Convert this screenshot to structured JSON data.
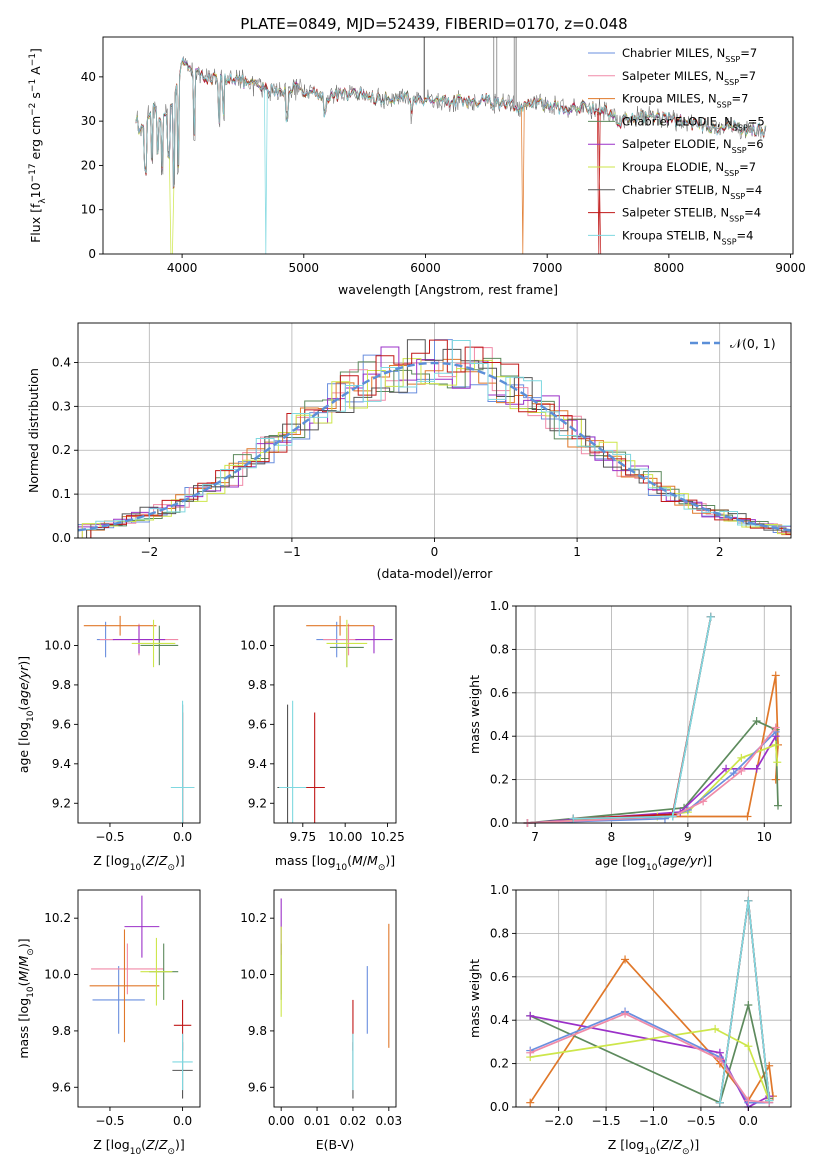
{
  "title": "PLATE=0849, MJD=52439, FIBERID=0170, z=0.048",
  "colors": {
    "Chabrier MILES": "#6a8fdf",
    "Salpeter MILES": "#f08aa8",
    "Kroupa MILES": "#e0782a",
    "Chabrier ELODIE": "#5d8a5d",
    "Salpeter ELODIE": "#9b30c8",
    "Kroupa ELODIE": "#cde64a",
    "Chabrier STELIB": "#555555",
    "Salpeter STELIB": "#c01818",
    "Kroupa STELIB": "#7fd8e0"
  },
  "chart_data": [
    {
      "type": "line",
      "id": "spectrum",
      "xlabel": "wavelength [Angstrom, rest frame]",
      "ylabel": "Flux [f$_\\lambda$10$^{-17}$ erg cm$^{-2}$ s$^{-1}$ A$^{-1}$]",
      "xlim": [
        3350,
        9020
      ],
      "ylim": [
        0,
        49
      ],
      "xticks": [
        4000,
        5000,
        6000,
        7000,
        8000,
        9000
      ],
      "yticks": [
        0,
        10,
        20,
        30,
        40
      ],
      "grid": false,
      "legend_position": "right",
      "legend": [
        {
          "name": "Chabrier MILES",
          "label": "Chabrier MILES, N",
          "sub": "SSP",
          "n": "=7"
        },
        {
          "name": "Salpeter MILES",
          "label": "Salpeter MILES, N",
          "sub": "SSP",
          "n": "=7"
        },
        {
          "name": "Kroupa MILES",
          "label": "Kroupa MILES, N",
          "sub": "SSP",
          "n": "=7"
        },
        {
          "name": "Chabrier ELODIE",
          "label": "Chabrier ELODIE, N",
          "sub": "SSP",
          "n": "=5"
        },
        {
          "name": "Salpeter ELODIE",
          "label": "Salpeter ELODIE, N",
          "sub": "SSP",
          "n": "=6"
        },
        {
          "name": "Kroupa ELODIE",
          "label": "Kroupa ELODIE, N",
          "sub": "SSP",
          "n": "=7"
        },
        {
          "name": "Chabrier STELIB",
          "label": "Chabrier STELIB, N",
          "sub": "SSP",
          "n": "=4"
        },
        {
          "name": "Salpeter STELIB",
          "label": "Salpeter STELIB, N",
          "sub": "SSP",
          "n": "=4"
        },
        {
          "name": "Kroupa STELIB",
          "label": "Kroupa STELIB, N",
          "sub": "SSP",
          "n": "=4"
        }
      ],
      "continuum": [
        [
          3620,
          31
        ],
        [
          3660,
          27
        ],
        [
          3700,
          31
        ],
        [
          3760,
          33
        ],
        [
          3800,
          30
        ],
        [
          3860,
          32
        ],
        [
          3900,
          33
        ],
        [
          3940,
          36
        ],
        [
          3980,
          40
        ],
        [
          4010,
          44
        ],
        [
          4060,
          42
        ],
        [
          4100,
          41
        ],
        [
          4200,
          40
        ],
        [
          4300,
          39
        ],
        [
          4400,
          40
        ],
        [
          4500,
          39
        ],
        [
          4600,
          38
        ],
        [
          4700,
          37
        ],
        [
          4800,
          37
        ],
        [
          4900,
          37.5
        ],
        [
          5000,
          37
        ],
        [
          5100,
          36.5
        ],
        [
          5200,
          35.5
        ],
        [
          5300,
          36
        ],
        [
          5400,
          36
        ],
        [
          5500,
          36
        ],
        [
          5600,
          35
        ],
        [
          5700,
          35
        ],
        [
          5800,
          36
        ],
        [
          5900,
          34.5
        ],
        [
          6000,
          35
        ],
        [
          6100,
          35
        ],
        [
          6200,
          34.5
        ],
        [
          6300,
          34.5
        ],
        [
          6400,
          34
        ],
        [
          6500,
          35
        ],
        [
          6600,
          34
        ],
        [
          6700,
          33.5
        ],
        [
          6800,
          33
        ],
        [
          6900,
          34
        ],
        [
          7000,
          33.5
        ],
        [
          7100,
          33
        ],
        [
          7200,
          32.5
        ],
        [
          7300,
          33.5
        ],
        [
          7400,
          33
        ],
        [
          7500,
          32
        ],
        [
          7600,
          30
        ],
        [
          7700,
          31
        ],
        [
          7800,
          31
        ],
        [
          7900,
          31
        ],
        [
          8000,
          30.5
        ],
        [
          8100,
          30
        ],
        [
          8200,
          29.5
        ],
        [
          8300,
          29
        ],
        [
          8400,
          28.5
        ],
        [
          8500,
          29
        ],
        [
          8600,
          28
        ],
        [
          8700,
          28
        ],
        [
          8800,
          28
        ]
      ],
      "absorption_lines": [
        [
          3700,
          18
        ],
        [
          3750,
          20
        ],
        [
          3798,
          22
        ],
        [
          3835,
          18
        ],
        [
          3890,
          21
        ],
        [
          3934,
          14
        ],
        [
          3969,
          18
        ],
        [
          4102,
          26
        ],
        [
          4305,
          28
        ],
        [
          4340,
          30
        ],
        [
          4861,
          30
        ],
        [
          5175,
          31
        ],
        [
          5890,
          30
        ],
        [
          6563,
          31
        ]
      ],
      "model_dropouts": [
        [
          3915,
          "Kroupa ELODIE"
        ],
        [
          4690,
          "Kroupa STELIB"
        ],
        [
          6800,
          "Kroupa MILES"
        ],
        [
          7420,
          "Salpeter STELIB"
        ]
      ]
    },
    {
      "type": "histogram",
      "id": "residuals",
      "xlabel": "(data-model)/error",
      "ylabel": "Normed distribution",
      "xlim": [
        -2.5,
        2.5
      ],
      "ylim": [
        0,
        0.49
      ],
      "xticks": [
        -2,
        -1,
        0,
        1,
        2
      ],
      "yticks": [
        0.0,
        0.1,
        0.2,
        0.3,
        0.4
      ],
      "grid": true,
      "legend_position": "top-right",
      "reference_label": "N(0,1)",
      "reference": "normal(0,1)",
      "bin_width": 0.125,
      "bins_from": -2.5
    },
    {
      "type": "scatter",
      "id": "age-vs-z",
      "xlabel": "Z [log10(Z/Zsun)]",
      "ylabel": "age [log10(age/yr)]",
      "xlim": [
        -0.72,
        0.12
      ],
      "ylim": [
        9.1,
        10.2
      ],
      "xticks": [
        -0.5,
        0.0
      ],
      "yticks": [
        9.2,
        9.4,
        9.6,
        9.8,
        10.0
      ],
      "grid": false,
      "points": [
        {
          "series": "Chabrier MILES",
          "x": -0.53,
          "y": 10.03,
          "xerr": 0.06,
          "yerr": 0.09
        },
        {
          "series": "Salpeter MILES",
          "x": -0.3,
          "y": 10.03,
          "xerr": 0.27,
          "yerr": 0.08
        },
        {
          "series": "Kroupa MILES",
          "x": -0.43,
          "y": 10.1,
          "xerr": 0.25,
          "yerr": 0.05
        },
        {
          "series": "Chabrier ELODIE",
          "x": -0.16,
          "y": 10.0,
          "xerr": 0.13,
          "yerr": 0.1
        },
        {
          "series": "Salpeter ELODIE",
          "x": -0.3,
          "y": 10.03,
          "xerr": 0.18,
          "yerr": 0.07
        },
        {
          "series": "Kroupa ELODIE",
          "x": -0.2,
          "y": 10.01,
          "xerr": 0.15,
          "yerr": 0.12
        },
        {
          "series": "Chabrier STELIB",
          "x": 0.0,
          "y": 9.28,
          "xerr": 0.08,
          "yerr": 0.42
        },
        {
          "series": "Salpeter STELIB",
          "x": 0.0,
          "y": 9.28,
          "xerr": 0.06,
          "yerr": 0.38
        },
        {
          "series": "Kroupa STELIB",
          "x": 0.0,
          "y": 9.28,
          "xerr": 0.08,
          "yerr": 0.44
        }
      ]
    },
    {
      "type": "scatter",
      "id": "age-vs-mass",
      "xlabel": "mass [log10(M/Msun)]",
      "ylabel": "",
      "xlim": [
        9.58,
        10.3
      ],
      "ylim": [
        9.1,
        10.2
      ],
      "xticks": [
        9.75,
        10.0,
        10.25
      ],
      "yticks": [
        9.2,
        9.4,
        9.6,
        9.8,
        10.0
      ],
      "xticklabels": [
        "9.75",
        "10.00",
        "10.25"
      ],
      "grid": false,
      "points": [
        {
          "series": "Chabrier MILES",
          "x": 9.95,
          "y": 10.03,
          "xerr": 0.12,
          "yerr": 0.09
        },
        {
          "series": "Salpeter MILES",
          "x": 10.02,
          "y": 10.03,
          "xerr": 0.15,
          "yerr": 0.08
        },
        {
          "series": "Kroupa MILES",
          "x": 9.97,
          "y": 10.1,
          "xerr": 0.2,
          "yerr": 0.05
        },
        {
          "series": "Chabrier ELODIE",
          "x": 10.01,
          "y": 9.99,
          "xerr": 0.1,
          "yerr": 0.1
        },
        {
          "series": "Salpeter ELODIE",
          "x": 10.17,
          "y": 10.03,
          "xerr": 0.11,
          "yerr": 0.07
        },
        {
          "series": "Kroupa ELODIE",
          "x": 10.01,
          "y": 10.01,
          "xerr": 0.12,
          "yerr": 0.12
        },
        {
          "series": "Chabrier STELIB",
          "x": 9.66,
          "y": 9.28,
          "xerr": 0.06,
          "yerr": 0.42
        },
        {
          "series": "Salpeter STELIB",
          "x": 9.82,
          "y": 9.28,
          "xerr": 0.06,
          "yerr": 0.38
        },
        {
          "series": "Kroupa STELIB",
          "x": 9.69,
          "y": 9.28,
          "xerr": 0.08,
          "yerr": 0.44
        }
      ]
    },
    {
      "type": "line",
      "id": "massweight-vs-age",
      "xlabel": "age [log10(age/yr)]",
      "ylabel": "mass weight",
      "xlim": [
        6.75,
        10.35
      ],
      "ylim": [
        0,
        1.0
      ],
      "xticks": [
        7,
        8,
        9,
        10
      ],
      "yticks": [
        0.0,
        0.2,
        0.4,
        0.6,
        0.8,
        1.0
      ],
      "grid": true,
      "series": [
        {
          "name": "Kroupa MILES",
          "x": [
            6.9,
            8.7,
            9.78,
            10.15,
            10.18,
            10.15
          ],
          "y": [
            0.0,
            0.03,
            0.03,
            0.68,
            0.36,
            0.2
          ]
        },
        {
          "name": "Chabrier ELODIE",
          "x": [
            6.9,
            8.95,
            9.9,
            10.15,
            10.18
          ],
          "y": [
            0.0,
            0.07,
            0.47,
            0.43,
            0.08
          ]
        },
        {
          "name": "Salpeter ELODIE",
          "x": [
            6.9,
            8.9,
            9.5,
            9.9,
            10.15
          ],
          "y": [
            0.0,
            0.05,
            0.25,
            0.25,
            0.4
          ]
        },
        {
          "name": "Kroupa ELODIE",
          "x": [
            6.9,
            8.6,
            9.0,
            9.7,
            10.15,
            10.17
          ],
          "y": [
            0.0,
            0.03,
            0.05,
            0.3,
            0.36,
            0.28
          ]
        },
        {
          "name": "Chabrier MILES",
          "x": [
            6.9,
            8.7,
            9.0,
            9.6,
            10.15
          ],
          "y": [
            0.0,
            0.02,
            0.06,
            0.23,
            0.42
          ]
        },
        {
          "name": "Salpeter MILES",
          "x": [
            6.9,
            8.8,
            9.2,
            9.7,
            10.15
          ],
          "y": [
            0.0,
            0.03,
            0.1,
            0.24,
            0.44
          ]
        },
        {
          "name": "Chabrier STELIB",
          "x": [
            7.5,
            8.8,
            9.3
          ],
          "y": [
            0.02,
            0.03,
            0.95
          ]
        },
        {
          "name": "Salpeter STELIB",
          "x": [
            7.5,
            8.8,
            9.3
          ],
          "y": [
            0.02,
            0.04,
            0.95
          ]
        },
        {
          "name": "Kroupa STELIB",
          "x": [
            7.5,
            8.8,
            9.3
          ],
          "y": [
            0.02,
            0.03,
            0.95
          ]
        }
      ]
    },
    {
      "type": "scatter",
      "id": "mass-vs-z",
      "xlabel": "Z [log10(Z/Zsun)]",
      "ylabel": "mass [log10(M/Msun)]",
      "xlim": [
        -0.72,
        0.12
      ],
      "ylim": [
        9.53,
        10.3
      ],
      "xticks": [
        -0.5,
        0.0
      ],
      "yticks": [
        9.6,
        9.8,
        10.0,
        10.2
      ],
      "grid": false,
      "points": [
        {
          "series": "Chabrier MILES",
          "x": -0.44,
          "y": 9.91,
          "xerr": 0.18,
          "yerr": 0.12
        },
        {
          "series": "Salpeter MILES",
          "x": -0.38,
          "y": 10.02,
          "xerr": 0.25,
          "yerr": 0.09
        },
        {
          "series": "Kroupa MILES",
          "x": -0.4,
          "y": 9.96,
          "xerr": 0.24,
          "yerr": 0.2
        },
        {
          "series": "Chabrier ELODIE",
          "x": -0.13,
          "y": 10.01,
          "xerr": 0.1,
          "yerr": 0.1
        },
        {
          "series": "Salpeter ELODIE",
          "x": -0.28,
          "y": 10.17,
          "xerr": 0.12,
          "yerr": 0.11
        },
        {
          "series": "Kroupa ELODIE",
          "x": -0.18,
          "y": 10.01,
          "xerr": 0.11,
          "yerr": 0.12
        },
        {
          "series": "Chabrier STELIB",
          "x": 0.0,
          "y": 9.66,
          "xerr": 0.07,
          "yerr": 0.1
        },
        {
          "series": "Salpeter STELIB",
          "x": 0.0,
          "y": 9.82,
          "xerr": 0.06,
          "yerr": 0.09
        },
        {
          "series": "Kroupa STELIB",
          "x": 0.0,
          "y": 9.69,
          "xerr": 0.07,
          "yerr": 0.1
        }
      ]
    },
    {
      "type": "scatter",
      "id": "mass-vs-ebv",
      "xlabel": "E(B-V)",
      "ylabel": "",
      "xlim": [
        -0.002,
        0.032
      ],
      "ylim": [
        9.53,
        10.3
      ],
      "xticks": [
        0.0,
        0.01,
        0.02,
        0.03
      ],
      "xticklabels": [
        "0.00",
        "0.01",
        "0.02",
        "0.03"
      ],
      "yticks": [
        9.6,
        9.8,
        10.0,
        10.2
      ],
      "grid": false,
      "points": [
        {
          "series": "Chabrier MILES",
          "x": 0.024,
          "y": 9.91,
          "xerr": 0.0,
          "yerr": 0.12
        },
        {
          "series": "Salpeter MILES",
          "x": 0.0,
          "y": 10.02,
          "xerr": 0.0,
          "yerr": 0.09
        },
        {
          "series": "Kroupa MILES",
          "x": 0.03,
          "y": 9.96,
          "xerr": 0.0,
          "yerr": 0.22
        },
        {
          "series": "Chabrier ELODIE",
          "x": 0.0,
          "y": 10.01,
          "xerr": 0.0,
          "yerr": 0.1
        },
        {
          "series": "Salpeter ELODIE",
          "x": 0.0,
          "y": 10.17,
          "xerr": 0.0,
          "yerr": 0.1
        },
        {
          "series": "Kroupa ELODIE",
          "x": 0.0,
          "y": 10.01,
          "xerr": 0.0,
          "yerr": 0.16
        },
        {
          "series": "Chabrier STELIB",
          "x": 0.02,
          "y": 9.66,
          "xerr": 0.0,
          "yerr": 0.1
        },
        {
          "series": "Salpeter STELIB",
          "x": 0.02,
          "y": 9.82,
          "xerr": 0.0,
          "yerr": 0.09
        },
        {
          "series": "Kroupa STELIB",
          "x": 0.02,
          "y": 9.69,
          "xerr": 0.0,
          "yerr": 0.1
        }
      ]
    },
    {
      "type": "line",
      "id": "massweight-vs-z",
      "xlabel": "Z [log10(Z/Zsun)]",
      "ylabel": "mass weight",
      "xlim": [
        -2.45,
        0.45
      ],
      "ylim": [
        0,
        1.0
      ],
      "xticks": [
        -2.0,
        -1.5,
        -1.0,
        -0.5,
        0.0
      ],
      "yticks": [
        0.0,
        0.2,
        0.4,
        0.6,
        0.8,
        1.0
      ],
      "grid": true,
      "series": [
        {
          "name": "Kroupa MILES",
          "x": [
            -2.3,
            -1.3,
            -0.3,
            0.0,
            0.22,
            0.26
          ],
          "y": [
            0.02,
            0.68,
            0.2,
            0.03,
            0.19,
            0.05
          ]
        },
        {
          "name": "Chabrier ELODIE",
          "x": [
            -2.3,
            -0.3,
            0.0,
            0.22
          ],
          "y": [
            0.42,
            0.02,
            0.47,
            0.04
          ]
        },
        {
          "name": "Salpeter ELODIE",
          "x": [
            -2.3,
            -0.3,
            0.0,
            0.22
          ],
          "y": [
            0.42,
            0.25,
            0.0,
            0.05
          ]
        },
        {
          "name": "Kroupa ELODIE",
          "x": [
            -2.3,
            -0.35,
            0.0,
            0.22
          ],
          "y": [
            0.23,
            0.36,
            0.28,
            0.03
          ]
        },
        {
          "name": "Chabrier MILES",
          "x": [
            -2.3,
            -1.3,
            -0.3,
            0.0,
            0.22
          ],
          "y": [
            0.26,
            0.44,
            0.23,
            0.02,
            0.02
          ]
        },
        {
          "name": "Salpeter MILES",
          "x": [
            -2.3,
            -1.3,
            -0.3,
            0.0,
            0.22
          ],
          "y": [
            0.25,
            0.43,
            0.22,
            0.03,
            0.02
          ]
        },
        {
          "name": "Chabrier STELIB",
          "x": [
            -0.3,
            0.0,
            0.22
          ],
          "y": [
            0.02,
            0.95,
            0.03
          ]
        },
        {
          "name": "Salpeter STELIB",
          "x": [
            -0.3,
            0.0,
            0.22
          ],
          "y": [
            0.02,
            0.95,
            0.03
          ]
        },
        {
          "name": "Kroupa STELIB",
          "x": [
            -0.3,
            0.0,
            0.22
          ],
          "y": [
            0.02,
            0.95,
            0.03
          ]
        }
      ]
    }
  ]
}
